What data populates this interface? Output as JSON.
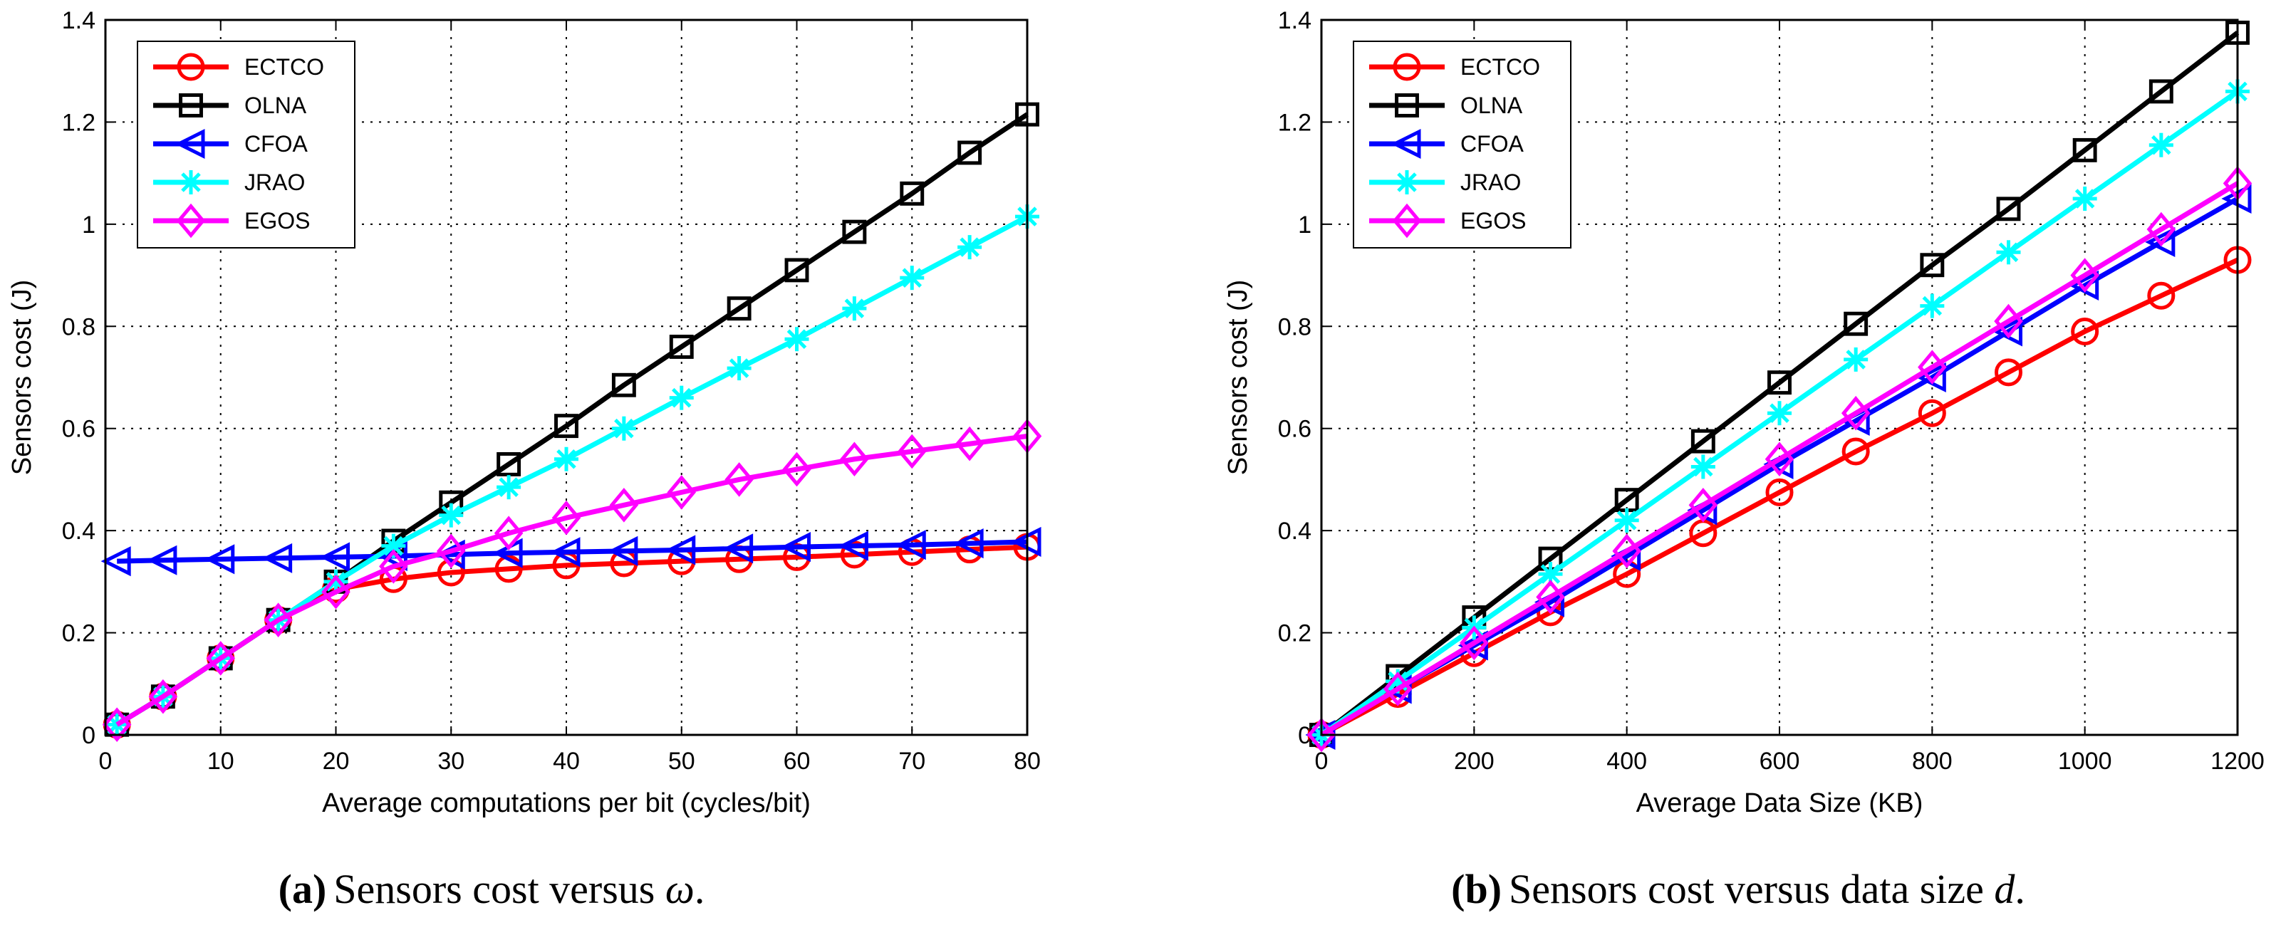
{
  "colors": {
    "ECTCO": "#ff0000",
    "OLNA": "#000000",
    "CFOA": "#0000ff",
    "JRAO": "#00ffff",
    "EGOS": "#ff00ff"
  },
  "chart_data": [
    {
      "type": "line",
      "id": "a",
      "xlabel": "Average computations per bit (cycles/bit)",
      "ylabel": "Sensors cost (J)",
      "xlim": [
        0,
        80
      ],
      "ylim": [
        0,
        1.4
      ],
      "xticks": [
        "0",
        "10",
        "20",
        "30",
        "40",
        "50",
        "60",
        "70",
        "80"
      ],
      "yticks": [
        "0",
        "0.2",
        "0.4",
        "0.6",
        "0.8",
        "1",
        "1.2",
        "1.4"
      ],
      "grid": true,
      "legend_position": "top-left",
      "caption_label": "(a)",
      "caption_text": "Sensors cost versus ",
      "caption_symbol": "ω",
      "caption_end": ".",
      "x": [
        1,
        5,
        10,
        15,
        20,
        25,
        30,
        35,
        40,
        45,
        50,
        55,
        60,
        65,
        70,
        75,
        80
      ],
      "series": [
        {
          "name": "ECTCO",
          "marker": "circle",
          "values": [
            0.02,
            0.075,
            0.15,
            0.225,
            0.285,
            0.305,
            0.318,
            0.325,
            0.332,
            0.336,
            0.34,
            0.344,
            0.348,
            0.353,
            0.358,
            0.363,
            0.368
          ]
        },
        {
          "name": "OLNA",
          "marker": "square",
          "values": [
            0.02,
            0.075,
            0.15,
            0.225,
            0.3,
            0.38,
            0.455,
            0.53,
            0.605,
            0.685,
            0.76,
            0.835,
            0.91,
            0.985,
            1.06,
            1.14,
            1.215
          ]
        },
        {
          "name": "CFOA",
          "marker": "triangle-left",
          "values": [
            0.34,
            0.342,
            0.344,
            0.346,
            0.348,
            0.35,
            0.353,
            0.356,
            0.358,
            0.36,
            0.362,
            0.365,
            0.368,
            0.37,
            0.372,
            0.375,
            0.378
          ]
        },
        {
          "name": "JRAO",
          "marker": "asterisk",
          "values": [
            0.02,
            0.075,
            0.15,
            0.225,
            0.3,
            0.37,
            0.43,
            0.485,
            0.54,
            0.6,
            0.66,
            0.718,
            0.775,
            0.835,
            0.895,
            0.955,
            1.015
          ]
        },
        {
          "name": "EGOS",
          "marker": "diamond",
          "values": [
            0.02,
            0.075,
            0.15,
            0.225,
            0.28,
            0.33,
            0.36,
            0.395,
            0.425,
            0.45,
            0.475,
            0.5,
            0.52,
            0.54,
            0.555,
            0.57,
            0.585
          ]
        }
      ]
    },
    {
      "type": "line",
      "id": "b",
      "xlabel": "Average Data Size (KB)",
      "ylabel": "Sensors cost (J)",
      "xlim": [
        0,
        1200
      ],
      "ylim": [
        0,
        1.4
      ],
      "xticks": [
        "0",
        "200",
        "400",
        "600",
        "800",
        "1000",
        "1200"
      ],
      "yticks": [
        "0",
        "0.2",
        "0.4",
        "0.6",
        "0.8",
        "1",
        "1.2",
        "1.4"
      ],
      "grid": true,
      "legend_position": "top-left",
      "caption_label": "(b)",
      "caption_text": "Sensors cost versus data size ",
      "caption_symbol": "d",
      "caption_end": ".",
      "x": [
        0,
        100,
        200,
        300,
        400,
        500,
        600,
        700,
        800,
        900,
        1000,
        1100,
        1200
      ],
      "series": [
        {
          "name": "ECTCO",
          "marker": "circle",
          "values": [
            0.0,
            0.08,
            0.16,
            0.24,
            0.315,
            0.395,
            0.475,
            0.555,
            0.63,
            0.71,
            0.79,
            0.86,
            0.93
          ]
        },
        {
          "name": "OLNA",
          "marker": "square",
          "values": [
            0.0,
            0.115,
            0.23,
            0.345,
            0.46,
            0.575,
            0.69,
            0.805,
            0.92,
            1.03,
            1.145,
            1.26,
            1.375
          ]
        },
        {
          "name": "CFOA",
          "marker": "triangle-left",
          "values": [
            0.0,
            0.09,
            0.175,
            0.26,
            0.35,
            0.44,
            0.53,
            0.615,
            0.7,
            0.79,
            0.88,
            0.965,
            1.05
          ]
        },
        {
          "name": "JRAO",
          "marker": "asterisk",
          "values": [
            0.0,
            0.105,
            0.21,
            0.315,
            0.42,
            0.525,
            0.63,
            0.735,
            0.84,
            0.945,
            1.05,
            1.155,
            1.26
          ]
        },
        {
          "name": "EGOS",
          "marker": "diamond",
          "values": [
            0.0,
            0.09,
            0.18,
            0.27,
            0.36,
            0.45,
            0.54,
            0.63,
            0.72,
            0.81,
            0.9,
            0.99,
            1.08
          ]
        }
      ]
    }
  ]
}
